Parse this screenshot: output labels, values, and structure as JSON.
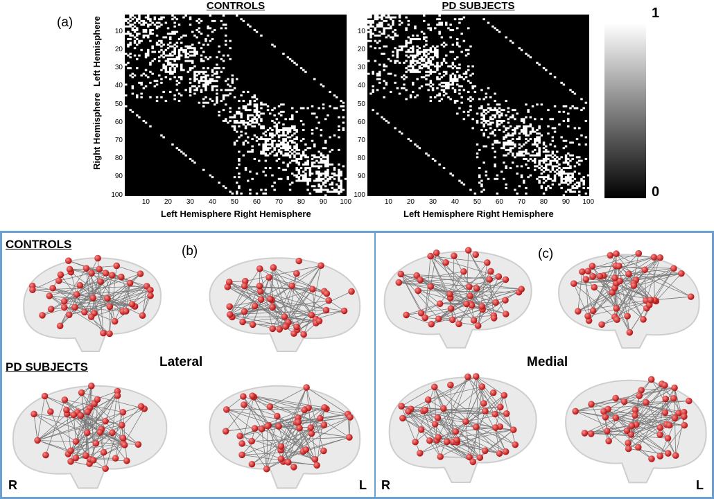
{
  "panel_a": {
    "label": "(a)",
    "matrices": [
      {
        "title": "CONTROLS",
        "xlabel": "Left Hemisphere  Right Hemisphere"
      },
      {
        "title": "PD SUBJECTS",
        "xlabel": "Left Hemisphere  Right Hemisphere"
      }
    ],
    "y_group_labels": [
      "Left Hemisphere",
      "Right Hemisphere"
    ],
    "ticks": [
      "10",
      "20",
      "30",
      "40",
      "50",
      "60",
      "70",
      "80",
      "90",
      "100"
    ],
    "colorbar": {
      "max_label": "1",
      "min_label": "0"
    }
  },
  "panel_b": {
    "label": "(b)",
    "view_label": "Lateral"
  },
  "panel_c": {
    "label": "(c)",
    "view_label": "Medial"
  },
  "group_labels": {
    "controls": "CONTROLS",
    "pd": "PD SUBJECTS"
  },
  "orientation": {
    "left": "R",
    "right": "L",
    "right2_left": "R",
    "right2_right": "L"
  },
  "colors": {
    "frame": "#6a9fd2",
    "node": "#d42a2a",
    "edge": "#555555"
  },
  "chart_data": [
    {
      "type": "heatmap",
      "title": "CONTROLS",
      "xlabel": "Left Hemisphere  Right Hemisphere",
      "ylabel": "",
      "xlim": [
        1,
        100
      ],
      "ylim": [
        1,
        100
      ],
      "zlim": [
        0,
        1
      ],
      "colormap": "gray"
    },
    {
      "type": "heatmap",
      "title": "PD SUBJECTS",
      "xlabel": "Left Hemisphere  Right Hemisphere",
      "ylabel": "",
      "xlim": [
        1,
        100
      ],
      "ylim": [
        1,
        100
      ],
      "zlim": [
        0,
        1
      ],
      "colormap": "gray"
    }
  ]
}
